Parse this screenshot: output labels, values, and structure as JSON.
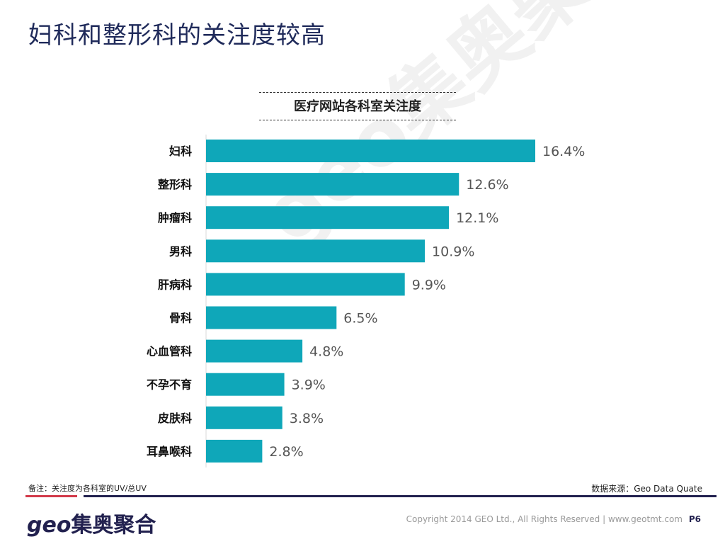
{
  "title": "妇科和整形科的关注度较高",
  "watermark": "geo集奥聚合",
  "chart_data": {
    "type": "bar",
    "orientation": "horizontal",
    "title": "医疗网站各科室关注度",
    "categories": [
      "妇科",
      "整形科",
      "肿瘤科",
      "男科",
      "肝病科",
      "骨科",
      "心血管科",
      "不孕不育",
      "皮肤科",
      "耳鼻喉科"
    ],
    "values": [
      16.4,
      12.6,
      12.1,
      10.9,
      9.9,
      6.5,
      4.8,
      3.9,
      3.8,
      2.8
    ],
    "labels": [
      "16.4%",
      "12.6%",
      "12.1%",
      "10.9%",
      "9.9%",
      "6.5%",
      "4.8%",
      "3.9%",
      "3.8%",
      "2.8%"
    ],
    "unit": "%",
    "xlim": [
      0,
      16.4
    ],
    "grid": false,
    "color": "#0fa7b9"
  },
  "footnote": "备注：关注度为各科室的UV/总UV",
  "source": "数据来源：Geo Data  Quate",
  "footer": {
    "logo_prefix": "geo",
    "logo_text": "集奥聚合",
    "copyright": "Copyright 2014 GEO Ltd., All Rights Reserved  |  www.geotmt.com",
    "page": "P6"
  }
}
